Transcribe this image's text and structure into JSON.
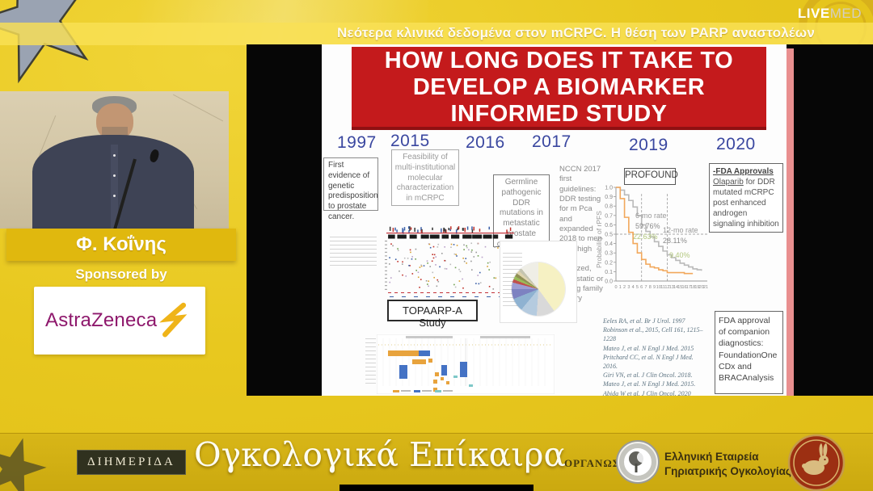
{
  "header": {
    "session_title": "Νεότερα κλινικά δεδομένα στον mCRPC. Η θέση των PARP αναστολέων",
    "brand_live": "LIVE",
    "brand_med": "MED"
  },
  "speaker": {
    "name": "Φ. Κοΐνης",
    "sponsored_by": "Sponsored by",
    "sponsor": "AstraZeneca"
  },
  "slide": {
    "title": "HOW LONG DOES IT TAKE TO DEVELOP A BIOMARKER INFORMED STUDY",
    "years": [
      "1997",
      "2015",
      "2016",
      "2017",
      "2019",
      "2020"
    ],
    "boxes": {
      "evidence_1997": "First evidence of genetic predisposition to prostate cancer.",
      "feasibility_2015": "Feasibility of multi-institutional molecular characterization in mCRPC",
      "germline_2016": "Germline pathogenic DDR mutations in metastatic prostate cancer 11.8%",
      "nccn_2017": "NCCN 2017 first guidelines: DDR testing for m Pca and expanded 2018 to men with, high risk localized, metastatic or strong family history",
      "profound": "PROFOUND",
      "fda_title": "-FDA Approvals",
      "fda_drug": "Olaparib",
      "fda_rest": " for DDR mutated mCRPC post enhanced androgen signaling inhibition",
      "topaarp": "TOPAARP-A Study",
      "companion_dx": "FDA approval of companion diagnostics: FoundationOne CDx and BRACAnalysis"
    },
    "references": [
      "Eeles RA, et al. Br J Urol. 1997",
      "Robinson et al., 2015, Cell 161, 1215–1228",
      "Mateo J, et al. N Engl J Med. 2015",
      "Pritchard CC, et al. N Engl J Med. 2016.",
      "Giri VN, et al. J Clin Oncol. 2018.",
      "Mateo J, et al. N Engl J Med. 2015.",
      "Abida W et al. J Clin Oncol. 2020"
    ],
    "chart_data": [
      {
        "type": "line",
        "name": "PROFOUND Kaplan-Meier rPFS",
        "ylabel": "Probability of rPFS",
        "xlim": [
          0,
          21
        ],
        "ylim": [
          0.0,
          1.0
        ],
        "yticks": [
          1.0,
          0.9,
          0.8,
          0.7,
          0.6,
          0.5,
          0.4,
          0.3,
          0.2,
          0.1,
          0.0
        ],
        "xticks": [
          0,
          1,
          2,
          3,
          4,
          5,
          6,
          7,
          8,
          9,
          10,
          11,
          12,
          13,
          14,
          15,
          16,
          17,
          18,
          19,
          20,
          21
        ],
        "reference_lines": {
          "h": [
            0.5
          ],
          "v": [
            6,
            12
          ]
        },
        "rates": {
          "label6": "6-mo rate",
          "v6": [
            "59.76%",
            "22.63%"
          ],
          "label12": "12-mo rate",
          "v12": [
            "28.11%",
            "9.40%"
          ]
        },
        "series": [
          {
            "name": "olaparib",
            "color": "#b9b9b9",
            "x": [
              0,
              1,
              2,
              3,
              4,
              5,
              6,
              7,
              8,
              9,
              10,
              11,
              12,
              13,
              14,
              15,
              16,
              17,
              18,
              19,
              20
            ],
            "y": [
              1.0,
              0.97,
              0.92,
              0.86,
              0.79,
              0.7,
              0.6,
              0.53,
              0.47,
              0.42,
              0.37,
              0.32,
              0.28,
              0.25,
              0.22,
              0.19,
              0.17,
              0.15,
              0.13,
              0.12,
              0.11
            ]
          },
          {
            "name": "control",
            "color": "#f2a85c",
            "x": [
              0,
              1,
              2,
              3,
              4,
              5,
              6,
              7,
              8,
              9,
              10,
              11,
              12,
              13,
              14,
              15,
              16,
              17,
              18
            ],
            "y": [
              1.0,
              0.88,
              0.68,
              0.52,
              0.4,
              0.3,
              0.23,
              0.18,
              0.15,
              0.14,
              0.12,
              0.11,
              0.09,
              0.09,
              0.09,
              0.09,
              0.08,
              0.08,
              0.08
            ]
          }
        ]
      },
      {
        "type": "pie",
        "name": "Germline pathogenic DDR mutation genes (estimated slice shares)",
        "values": [
          40,
          11,
          10,
          8,
          6,
          4,
          2,
          2,
          2,
          2,
          2,
          11
        ],
        "colors": [
          "#f6f1c3",
          "#d9d9d9",
          "#b5cbdf",
          "#8fb2d1",
          "#7d82c1",
          "#9d9dd3",
          "#c0504d",
          "#9bbb59",
          "#8f8f55",
          "#ddd3ad",
          "#c5c5b0",
          "#efeee6"
        ]
      }
    ]
  },
  "footer": {
    "event_type": "ΔΙΗΜΕΡΙΔΑ",
    "event_title": "Ογκολογικά Επίκαιρα",
    "organizer_label": "ΟΡΓΑΝΩΣΗ:",
    "organizer_line1": "Ελληνική Εταιρεία",
    "organizer_line2": "Γηριατρικής Ογκολογίας"
  }
}
